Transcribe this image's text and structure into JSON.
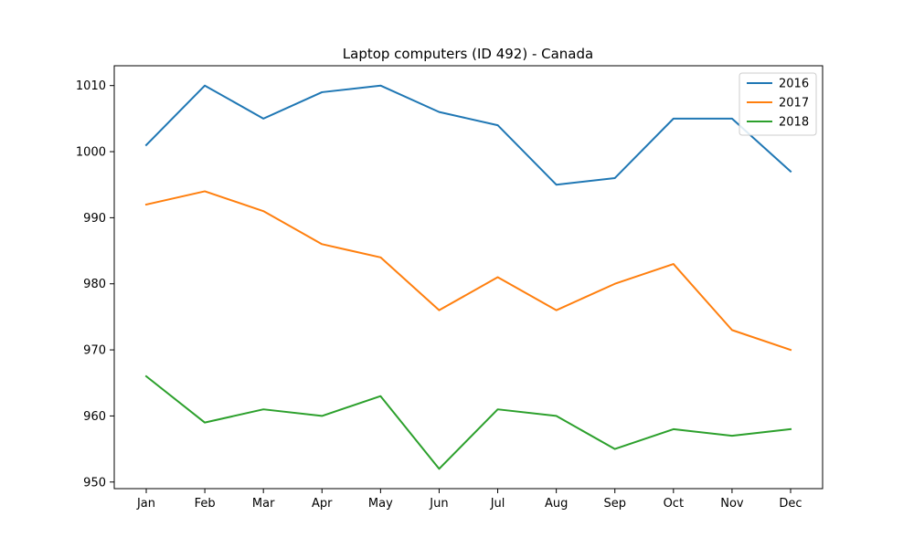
{
  "chart_data": {
    "type": "line",
    "title": "Laptop computers (ID 492) - Canada",
    "xlabel": "",
    "ylabel": "",
    "categories": [
      "Jan",
      "Feb",
      "Mar",
      "Apr",
      "May",
      "Jun",
      "Jul",
      "Aug",
      "Sep",
      "Oct",
      "Nov",
      "Dec"
    ],
    "ylim": [
      949,
      1013
    ],
    "yticks": [
      950,
      960,
      970,
      980,
      990,
      1000,
      1010
    ],
    "grid": false,
    "legend_position": "top-right",
    "series": [
      {
        "name": "2016",
        "color": "#1f77b4",
        "values": [
          1001,
          1010,
          1005,
          1009,
          1010,
          1006,
          1004,
          995,
          996,
          1005,
          1005,
          997
        ]
      },
      {
        "name": "2017",
        "color": "#ff7f0e",
        "values": [
          992,
          994,
          991,
          986,
          984,
          976,
          981,
          976,
          980,
          983,
          973,
          970
        ]
      },
      {
        "name": "2018",
        "color": "#2ca02c",
        "values": [
          966,
          959,
          961,
          960,
          963,
          952,
          961,
          960,
          955,
          958,
          957,
          958
        ]
      }
    ]
  }
}
